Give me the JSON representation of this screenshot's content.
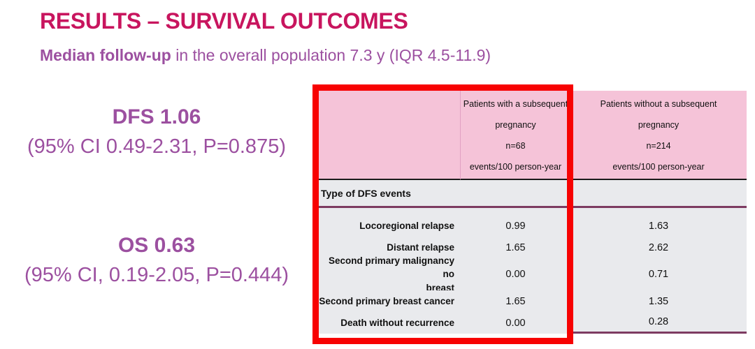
{
  "slide": {
    "title": "RESULTS – SURVIVAL OUTCOMES",
    "subtitle_bold": "Median follow-up",
    "subtitle_rest": " in the overall population 7.3 y (IQR 4.5-11.9)"
  },
  "stats": {
    "dfs": {
      "headline": "DFS 1.06",
      "detail": "(95% CI 0.49-2.31, P=0.875)"
    },
    "os": {
      "headline": "OS 0.63",
      "detail": "(95% CI, 0.19-2.05, P=0.444)"
    }
  },
  "table": {
    "col_with_header": "Patients with a subsequent\npregnancy\nn=68\nevents/100 person-year",
    "col_without_header": "Patients without a subsequent\npregnancy\nn=214\nevents/100 person-year",
    "section_header": "Type of DFS events",
    "rows": [
      {
        "label": "Locoregional relapse",
        "with_pregnancy": "0.99",
        "without_pregnancy": "1.63"
      },
      {
        "label": "Distant relapse",
        "with_pregnancy": "1.65",
        "without_pregnancy": "2.62"
      },
      {
        "label": "Second primary malignancy no\nbreast",
        "with_pregnancy": "0.00",
        "without_pregnancy": "0.71"
      },
      {
        "label": "Second primary breast cancer",
        "with_pregnancy": "1.65",
        "without_pregnancy": "1.35"
      },
      {
        "label": "Death without recurrence",
        "with_pregnancy": "0.00",
        "without_pregnancy": "0.28"
      }
    ]
  },
  "colors": {
    "title_magenta": "#C8155E",
    "purple_text": "#9C50A0",
    "header_pink": "#F5C3D8",
    "body_gray": "#E9EAED",
    "accent_line_purple": "#7D3B61",
    "highlight_red": "#F70202",
    "header_underline_black": "#1B1B1B"
  }
}
